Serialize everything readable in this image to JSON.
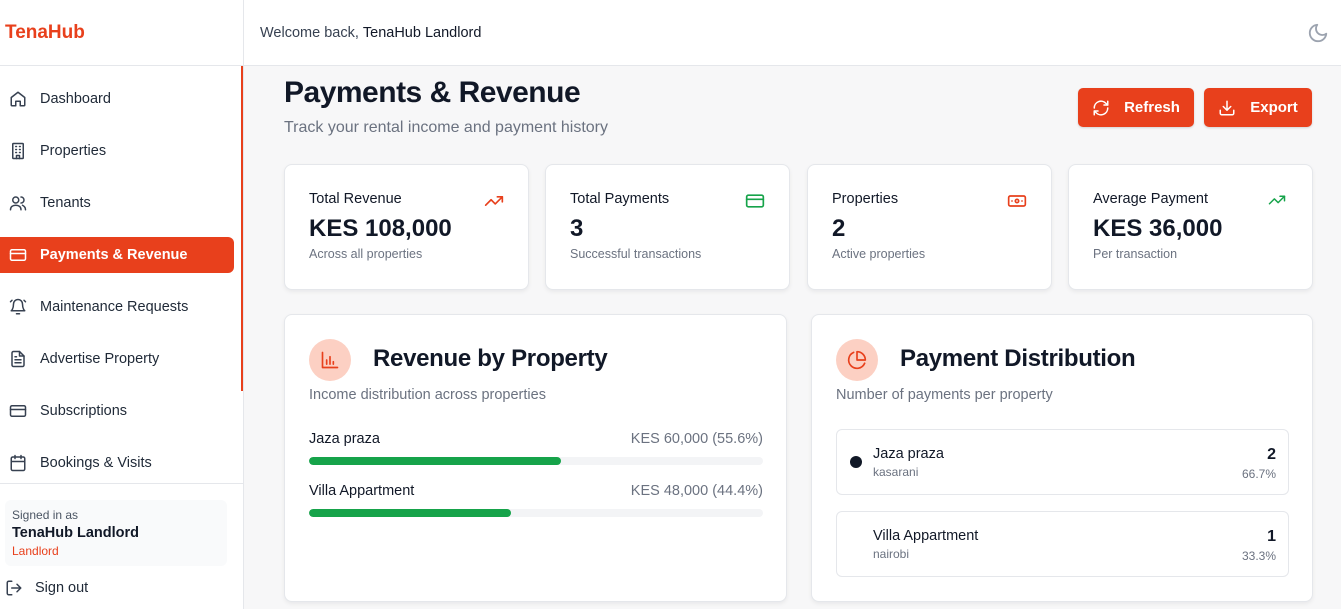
{
  "app": {
    "brand": "TenaHub"
  },
  "header": {
    "welcome_prefix": "Welcome back,",
    "user_name": "TenaHub Landlord"
  },
  "sidebar": {
    "items": [
      {
        "label": "Dashboard",
        "icon": "home-icon"
      },
      {
        "label": "Properties",
        "icon": "building-icon"
      },
      {
        "label": "Tenants",
        "icon": "users-icon"
      },
      {
        "label": "Payments & Revenue",
        "icon": "credit-card-icon",
        "active": true
      },
      {
        "label": "Maintenance Requests",
        "icon": "bell-icon"
      },
      {
        "label": "Advertise Property",
        "icon": "document-icon"
      },
      {
        "label": "Subscriptions",
        "icon": "credit-card-icon"
      },
      {
        "label": "Bookings & Visits",
        "icon": "calendar-icon"
      }
    ],
    "signed_in_label": "Signed in as",
    "signed_in_name": "TenaHub Landlord",
    "signed_in_role": "Landlord",
    "sign_out": "Sign out"
  },
  "page": {
    "title": "Payments & Revenue",
    "subtitle": "Track your rental income and payment history",
    "refresh_label": "Refresh",
    "export_label": "Export"
  },
  "stats": [
    {
      "label": "Total Revenue",
      "value": "KES 108,000",
      "sub": "Across all properties",
      "icon": "trending-up-icon",
      "color": "#e8401c"
    },
    {
      "label": "Total Payments",
      "value": "3",
      "sub": "Successful transactions",
      "icon": "credit-card-icon",
      "color": "#16a34a"
    },
    {
      "label": "Properties",
      "value": "2",
      "sub": "Active properties",
      "icon": "banknote-icon",
      "color": "#e8401c"
    },
    {
      "label": "Average Payment",
      "value": "KES 36,000",
      "sub": "Per transaction",
      "icon": "trending-up-icon",
      "color": "#16a34a"
    }
  ],
  "revenue_panel": {
    "title": "Revenue by Property",
    "description": "Income distribution across properties",
    "rows": [
      {
        "name": "Jaza praza",
        "amount": "KES 60,000 (55.6%)",
        "percent": 55.6
      },
      {
        "name": "Villa Appartment",
        "amount": "KES 48,000 (44.4%)",
        "percent": 44.4
      }
    ]
  },
  "distribution_panel": {
    "title": "Payment Distribution",
    "description": "Number of payments per property",
    "items": [
      {
        "name": "Jaza praza",
        "location": "kasarani",
        "count": "2",
        "percent": "66.7%"
      },
      {
        "name": "Villa Appartment",
        "location": "nairobi",
        "count": "1",
        "percent": "33.3%"
      }
    ]
  },
  "colors": {
    "accent": "#e8401c",
    "success": "#16a34a"
  }
}
